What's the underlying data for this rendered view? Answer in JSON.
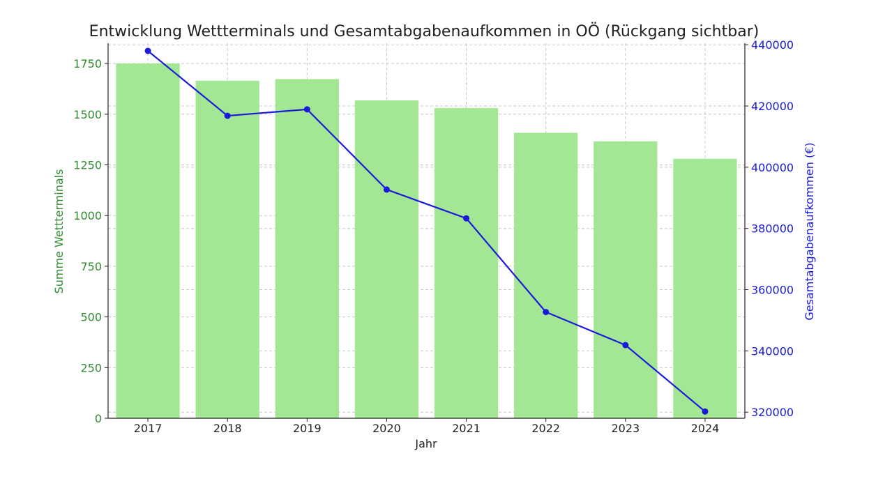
{
  "chart_data": {
    "type": "bar",
    "title": "Entwicklung Wettterminals und Gesamtabgabenaufkommen in OÖ (Rückgang sichtbar)",
    "xlabel": "Jahr",
    "categories": [
      "2017",
      "2018",
      "2019",
      "2020",
      "2021",
      "2022",
      "2023",
      "2024"
    ],
    "series": [
      {
        "type": "bar",
        "axis": "left",
        "values": [
          1750,
          1665,
          1673,
          1568,
          1530,
          1408,
          1366,
          1280
        ]
      },
      {
        "type": "line",
        "axis": "right",
        "values": [
          438000,
          416800,
          418900,
          392700,
          383300,
          352700,
          341900,
          320200
        ]
      }
    ],
    "y_left": {
      "label": "Summe Wettterminals",
      "range": [
        0,
        1850
      ],
      "ticks": [
        0,
        250,
        500,
        750,
        1000,
        1250,
        1500,
        1750
      ],
      "tick_labels": [
        "0",
        "250",
        "500",
        "750",
        "1000",
        "1250",
        "1500",
        "1750"
      ]
    },
    "y_right": {
      "label": "Gesamtabgabenaufkommen (€)",
      "range": [
        318000,
        440500
      ],
      "ticks": [
        320000,
        340000,
        360000,
        380000,
        400000,
        420000,
        440000
      ],
      "tick_labels": [
        "320000",
        "340000",
        "360000",
        "380000",
        "400000",
        "420000",
        "440000"
      ]
    },
    "grid": true,
    "colors": {
      "bars": "#a3e794",
      "line": "#1a1adb",
      "left_axis_text": "#2e8b2e",
      "right_axis_text": "#1a1adb",
      "text": "#222222",
      "grid": "#c8c8c8"
    }
  }
}
